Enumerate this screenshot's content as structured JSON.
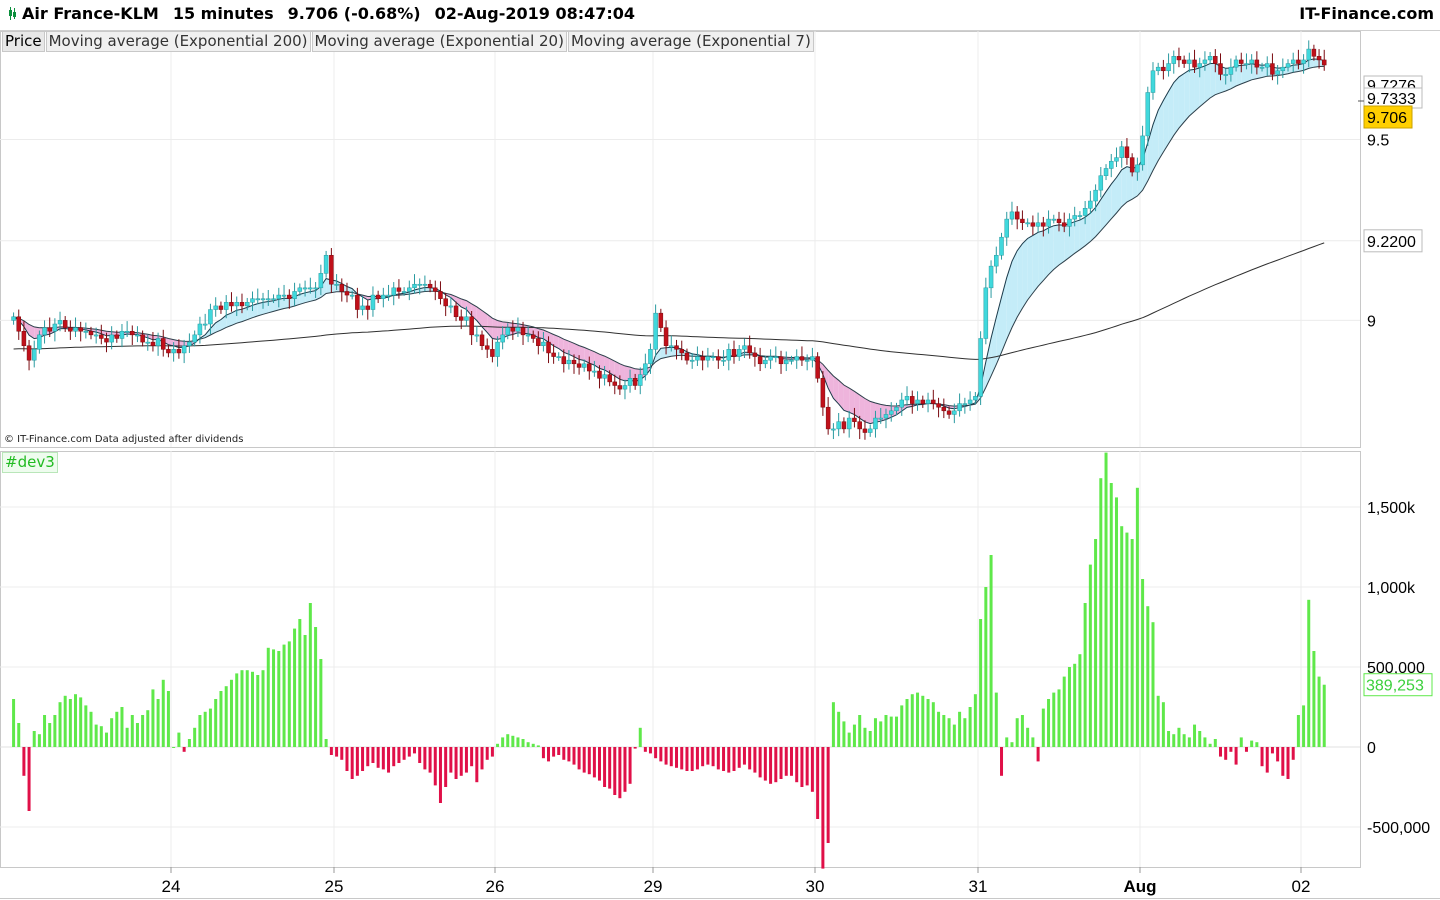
{
  "header": {
    "instrument": "Air France-KLM",
    "interval": "15 minutes",
    "last": "9.706 (-0.68%)",
    "datetime": "02-Aug-2019 08:47:04",
    "brand": "IT-Finance.com"
  },
  "legend": {
    "price": "Price",
    "ema200": "Moving average (Exponential 200)",
    "ema20": "Moving average (Exponential 20)",
    "ema7": "Moving average (Exponential 7)"
  },
  "copyright": "© IT-Finance.com  Data adjusted after dividends",
  "indicator_label": "#dev3",
  "colors": {
    "up": "#40d8dc",
    "down": "#c0101a",
    "hist_up": "#5fe84a",
    "hist_down": "#e01048",
    "fill_up": "#c4ecf8",
    "fill_down": "#eeb4dc",
    "last_price_bg": "#ffcf00"
  },
  "chart_data": [
    {
      "type": "candlestick",
      "title": "",
      "ylim": [
        8.65,
        9.8
      ],
      "y_ticks": [
        "9.5",
        "9.2200",
        "9"
      ],
      "y_labels_overlap": [
        "9.7276",
        "9.7333"
      ],
      "last_price_label": "9.706",
      "x_ticks": [
        "24",
        "25",
        "26",
        "29",
        "30",
        "31",
        "Aug",
        "02"
      ],
      "grid": true,
      "series": [
        {
          "name": "Price",
          "kind": "candles"
        },
        {
          "name": "Moving average (Exponential 200)",
          "kind": "line"
        },
        {
          "name": "Moving average (Exponential 20)",
          "kind": "line"
        },
        {
          "name": "Moving average (Exponential 7)",
          "kind": "line"
        }
      ],
      "closes": [
        [
          9.01,
          8.97,
          8.93,
          8.89,
          8.92,
          8.96,
          8.98,
          8.97,
          8.99,
          9.0,
          8.98,
          8.97,
          8.98,
          8.97,
          8.97,
          8.96,
          8.96,
          8.95,
          8.94,
          8.96,
          8.95,
          8.97,
          8.97,
          8.96,
          8.96,
          8.94,
          8.94,
          8.93,
          8.95,
          8.92,
          8.91
        ],
        [
          8.92,
          8.91,
          8.93,
          8.94,
          8.96,
          8.99,
          8.99,
          9.03,
          9.04,
          9.03,
          9.05,
          9.04,
          9.05,
          9.04,
          9.05,
          9.06,
          9.06,
          9.06,
          9.06,
          9.06,
          9.07,
          9.07,
          9.06,
          9.08,
          9.09,
          9.09,
          9.09,
          9.09,
          9.13,
          9.18,
          9.1
        ],
        [
          9.1,
          9.08,
          9.07,
          9.07,
          9.03,
          9.04,
          9.03,
          9.07,
          9.06,
          9.07,
          9.07,
          9.09,
          9.08,
          9.08,
          9.09,
          9.1,
          9.1,
          9.1,
          9.09,
          9.08,
          9.06,
          9.04,
          9.04,
          9.01,
          9.0,
          9.01,
          8.96,
          8.96,
          8.93,
          8.92,
          8.9
        ],
        [
          8.94,
          8.96,
          8.98,
          8.97,
          8.98,
          8.96,
          8.96,
          8.95,
          8.93,
          8.94,
          8.91,
          8.9,
          8.9,
          8.88,
          8.89,
          8.88,
          8.87,
          8.88,
          8.86,
          8.86,
          8.84,
          8.85,
          8.83,
          8.82,
          8.81,
          8.82,
          8.84,
          8.82,
          8.85,
          8.88,
          8.92
        ],
        [
          9.02,
          8.98,
          8.93,
          8.93,
          8.92,
          8.91,
          8.89,
          8.89,
          8.9,
          8.89,
          8.9,
          8.9,
          8.89,
          8.89,
          8.92,
          8.9,
          8.92,
          8.93,
          8.91,
          8.9,
          8.88,
          8.89,
          8.9,
          8.9,
          8.88,
          8.89,
          8.89,
          8.9,
          8.89,
          8.89,
          8.9
        ],
        [
          8.84,
          8.76,
          8.7,
          8.7,
          8.72,
          8.7,
          8.73,
          8.72,
          8.7,
          8.69,
          8.7,
          8.73,
          8.73,
          8.74,
          8.75,
          8.76,
          8.78,
          8.79,
          8.77,
          8.78,
          8.77,
          8.78,
          8.77,
          8.76,
          8.75,
          8.74,
          8.75,
          8.77,
          8.77,
          8.78,
          8.79
        ],
        [
          8.95,
          9.09,
          9.15,
          9.18,
          9.23,
          9.28,
          9.3,
          9.28,
          9.27,
          9.27,
          9.26,
          9.27,
          9.26,
          9.28,
          9.28,
          9.27,
          9.26,
          9.28,
          9.29,
          9.29,
          9.31,
          9.33,
          9.36,
          9.4,
          9.42,
          9.44,
          9.45,
          9.48,
          9.45,
          9.41,
          9.43
        ],
        [
          9.51,
          9.63,
          9.69,
          9.7,
          9.69,
          9.71,
          9.73,
          9.72,
          9.71,
          9.72,
          9.7,
          9.71,
          9.72,
          9.73,
          9.71,
          9.68,
          9.68,
          9.7,
          9.72,
          9.71,
          9.71,
          9.72,
          9.7,
          9.7,
          9.71,
          9.68,
          9.69,
          9.7,
          9.71,
          9.72,
          9.71
        ],
        [
          9.72,
          9.75,
          9.73,
          9.72,
          9.706
        ]
      ]
    },
    {
      "type": "bar",
      "title": "#dev3",
      "last_value_label": "389,253",
      "y_ticks": [
        "1,500k",
        "1,000k",
        "500,000",
        "0",
        "-500,000"
      ],
      "ylim": [
        -750000,
        1850000
      ],
      "values": [
        [
          300000,
          150000,
          -180000,
          -400000,
          100000,
          80000,
          200000,
          150000,
          200000,
          280000,
          320000,
          300000,
          330000,
          310000,
          260000,
          220000,
          140000,
          130000,
          90000,
          180000,
          220000,
          250000,
          120000,
          200000,
          150000,
          200000,
          230000,
          360000,
          300000,
          420000,
          350000
        ],
        [
          0,
          90000,
          -30000,
          50000,
          120000,
          200000,
          220000,
          240000,
          300000,
          350000,
          380000,
          420000,
          460000,
          480000,
          480000,
          470000,
          450000,
          480000,
          620000,
          610000,
          600000,
          640000,
          660000,
          740000,
          800000,
          700000,
          900000,
          750000,
          550000,
          50000,
          -50000
        ],
        [
          -60000,
          -80000,
          -150000,
          -200000,
          -180000,
          -150000,
          -120000,
          -100000,
          -130000,
          -140000,
          -160000,
          -120000,
          -100000,
          -80000,
          -60000,
          -40000,
          -100000,
          -140000,
          -160000,
          -240000,
          -350000,
          -250000,
          -160000,
          -200000,
          -180000,
          -160000,
          -120000,
          -220000,
          -140000,
          -80000,
          -60000
        ],
        [
          20000,
          60000,
          80000,
          70000,
          60000,
          50000,
          30000,
          20000,
          10000,
          -70000,
          -90000,
          -60000,
          -50000,
          -80000,
          -90000,
          -110000,
          -140000,
          -160000,
          -170000,
          -190000,
          -210000,
          -250000,
          -260000,
          -300000,
          -320000,
          -280000,
          -230000,
          -10000,
          120000,
          -30000,
          -40000
        ],
        [
          -70000,
          -90000,
          -110000,
          -120000,
          -130000,
          -140000,
          -150000,
          -150000,
          -140000,
          -120000,
          -110000,
          -120000,
          -140000,
          -150000,
          -160000,
          -150000,
          -130000,
          -110000,
          -140000,
          -160000,
          -190000,
          -210000,
          -230000,
          -220000,
          -200000,
          -180000,
          -180000,
          -220000,
          -250000,
          -240000,
          -280000
        ],
        [
          -450000,
          -760000,
          -600000,
          280000,
          220000,
          160000,
          90000,
          140000,
          200000,
          120000,
          100000,
          180000,
          160000,
          200000,
          190000,
          190000,
          260000,
          300000,
          330000,
          340000,
          320000,
          300000,
          280000,
          220000,
          200000,
          180000,
          140000,
          220000,
          180000,
          250000,
          330000
        ],
        [
          800000,
          1000000,
          1200000,
          340000,
          -180000,
          60000,
          30000,
          180000,
          200000,
          120000,
          60000,
          -90000,
          240000,
          300000,
          340000,
          360000,
          440000,
          500000,
          520000,
          580000,
          900000,
          1140000,
          1300000,
          1680000,
          1840000,
          1650000,
          1560000,
          1380000,
          1340000,
          1300000,
          1620000
        ],
        [
          1050000,
          880000,
          780000,
          320000,
          280000,
          100000,
          80000,
          120000,
          80000,
          60000,
          140000,
          100000,
          60000,
          20000,
          50000,
          -60000,
          -80000,
          -30000,
          -110000,
          60000,
          -30000,
          40000,
          30000,
          -120000,
          -160000,
          -40000,
          -90000,
          -180000,
          -200000,
          -80000,
          200000
        ],
        [
          260000,
          920000,
          600000,
          440000,
          389253
        ]
      ]
    }
  ]
}
